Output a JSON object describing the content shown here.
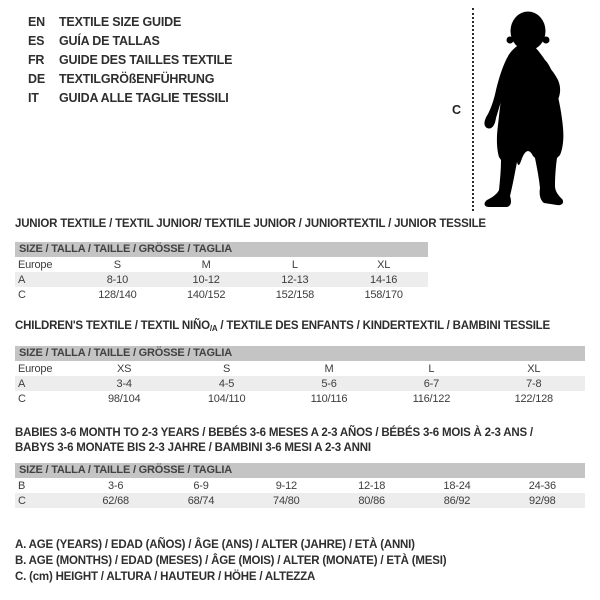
{
  "languages": [
    {
      "code": "EN",
      "title": "TEXTILE SIZE GUIDE"
    },
    {
      "code": "ES",
      "title": "GUÍA DE TALLAS"
    },
    {
      "code": "FR",
      "title": "GUIDE DES TAILLES TEXTILE"
    },
    {
      "code": "DE",
      "title": "TEXTILGRÖßENFÜHRUNG"
    },
    {
      "code": "IT",
      "title": "GUIDA ALLE TAGLIE TESSILI"
    }
  ],
  "figure": {
    "height_label": "C",
    "icon": "baby-silhouette"
  },
  "sections": {
    "junior": {
      "heading": "JUNIOR TEXTILE / TEXTIL JUNIOR/ TEXTILE JUNIOR / JUNIORTEXTIL / JUNIOR TESSILE",
      "size_header": "SIZE / TALLA / TAILLE / GRÖSSE / TAGLIA",
      "rows": [
        [
          "Europe",
          "S",
          "M",
          "L",
          "XL"
        ],
        [
          "A",
          "8-10",
          "10-12",
          "12-13",
          "14-16"
        ],
        [
          "C",
          "128/140",
          "140/152",
          "152/158",
          "158/170"
        ]
      ]
    },
    "children": {
      "heading_pre": "CHILDREN'S TEXTILE / TEXTIL NIÑO",
      "heading_sub": "/A",
      "heading_post": " / TEXTILE DES ENFANTS / KINDERTEXTIL / BAMBINI TESSILE",
      "size_header": "SIZE / TALLA / TAILLE / GRÖSSE / TAGLIA",
      "rows": [
        [
          "Europe",
          "XS",
          "S",
          "M",
          "L",
          "XL"
        ],
        [
          "A",
          "3-4",
          "4-5",
          "5-6",
          "6-7",
          "7-8"
        ],
        [
          "C",
          "98/104",
          "104/110",
          "110/116",
          "116/122",
          "122/128"
        ]
      ]
    },
    "babies": {
      "heading_line1": "BABIES 3-6 MONTH TO 2-3 YEARS / BEBÉS 3-6 MESES A 2-3 AÑOS / BÉBÉS 3-6 MOIS À 2-3 ANS /",
      "heading_line2": "BABYS 3-6 MONATE BIS 2-3 JAHRE / BAMBINI 3-6 MESI A 2-3 ANNI",
      "size_header": "SIZE / TALLA / TAILLE / GRÖSSE / TAGLIA",
      "rows": [
        [
          "B",
          "3-6",
          "6-9",
          "9-12",
          "12-18",
          "18-24",
          "24-36"
        ],
        [
          "C",
          "62/68",
          "68/74",
          "74/80",
          "80/86",
          "86/92",
          "92/98"
        ]
      ]
    }
  },
  "legend": [
    "A. AGE (YEARS) / EDAD (AÑOS) / ÂGE (ANS) / ALTER (JAHRE) / ETÀ (ANNI)",
    "B. AGE (MONTHS) / EDAD (MESES) / ÂGE (MOIS) / ALTER (MONATE) / ETÀ (MESI)",
    "C. (cm) HEIGHT / ALTURA / HAUTEUR / HÖHE / ALTEZZA"
  ],
  "colors": {
    "size_bar": "#c4c4c4",
    "alt_row": "#ededed",
    "text": "#3a3a3a",
    "silhouette": "#000000"
  }
}
